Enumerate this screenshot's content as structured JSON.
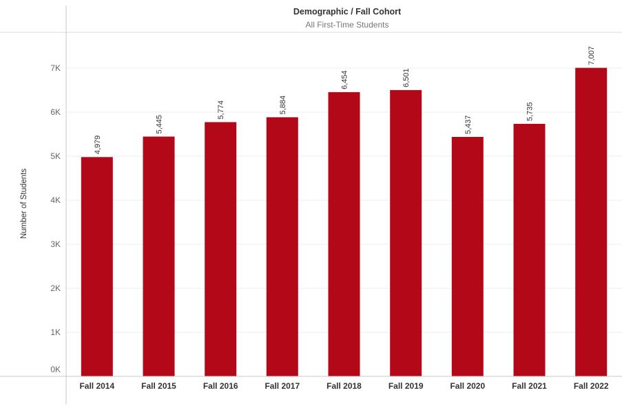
{
  "header": {
    "title": "Demographic / Fall Cohort",
    "subtitle": "All First-Time Students"
  },
  "colors": {
    "bar": "#b30818",
    "grid": "#ececec",
    "axis_line": "#c8c8c8",
    "tick_text": "#666666",
    "label_text": "#333333",
    "title_text": "#333333",
    "subtitle_text": "#777777"
  },
  "chart_data": {
    "type": "bar",
    "title": "Demographic / Fall Cohort",
    "subtitle": "All First-Time Students",
    "xlabel": "",
    "ylabel": "Number of Students",
    "categories": [
      "Fall 2014",
      "Fall 2015",
      "Fall 2016",
      "Fall 2017",
      "Fall 2018",
      "Fall 2019",
      "Fall 2020",
      "Fall 2021",
      "Fall 2022"
    ],
    "values": [
      4979,
      5445,
      5774,
      5884,
      6454,
      6501,
      5437,
      5735,
      7007
    ],
    "value_labels": [
      "4,979",
      "5,445",
      "5,774",
      "5,884",
      "6,454",
      "6,501",
      "5,437",
      "5,735",
      "7,007"
    ],
    "yticks": [
      0,
      1000,
      2000,
      3000,
      4000,
      5000,
      6000,
      7000
    ],
    "ytick_labels": [
      "0K",
      "1K",
      "2K",
      "3K",
      "4K",
      "5K",
      "6K",
      "7K"
    ],
    "ylim": [
      0,
      7700
    ],
    "grid": true,
    "legend": "none"
  }
}
